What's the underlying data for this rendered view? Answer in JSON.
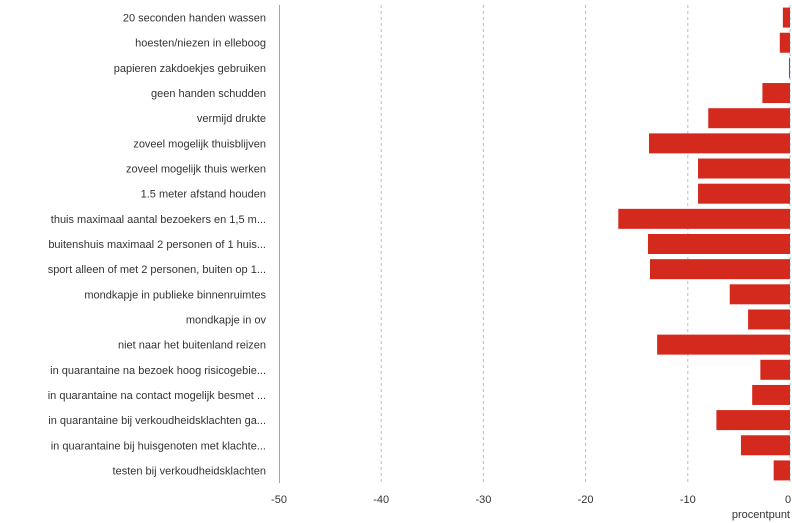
{
  "chart_data": {
    "type": "bar",
    "orientation": "horizontal",
    "categories": [
      "20 seconden handen wassen",
      "hoesten/niezen in elleboog",
      "papieren zakdoekjes gebruiken",
      "geen handen schudden",
      "vermijd drukte",
      "zoveel mogelijk thuisblijven",
      "zoveel mogelijk thuis werken",
      "1.5 meter afstand houden",
      "thuis maximaal aantal bezoekers en 1,5 m...",
      "buitenshuis maximaal 2 personen of 1 huis...",
      "sport alleen of met 2 personen, buiten op 1...",
      "mondkapje in publieke binnenruimtes",
      "mondkapje in ov",
      "niet naar het buitenland reizen",
      "in quarantaine na bezoek hoog risicogebie...",
      "in quarantaine na contact mogelijk besmet ...",
      "in quarantaine bij verkoudheidsklachten ga...",
      "in quarantaine bij huisgenoten met klachte...",
      "testen bij verkoudheidsklachten"
    ],
    "values": [
      -0.7,
      -1.0,
      -0.1,
      -2.7,
      -8.0,
      -13.8,
      -9.0,
      -9.0,
      -16.8,
      -13.9,
      -13.7,
      -5.9,
      -4.1,
      -13.0,
      -2.9,
      -3.7,
      -7.2,
      -4.8,
      -1.6
    ],
    "xlim": [
      -50,
      0
    ],
    "xticks": [
      -50,
      -40,
      -30,
      -20,
      -10,
      0
    ],
    "xtick_labels": [
      "-50",
      "-40",
      "-30",
      "-20",
      "-10",
      "0"
    ],
    "xlabel": "procentpunt",
    "grid": "vertical dashed",
    "bar_color": "#d42a1e",
    "grid_color": "#9ec3e6"
  }
}
